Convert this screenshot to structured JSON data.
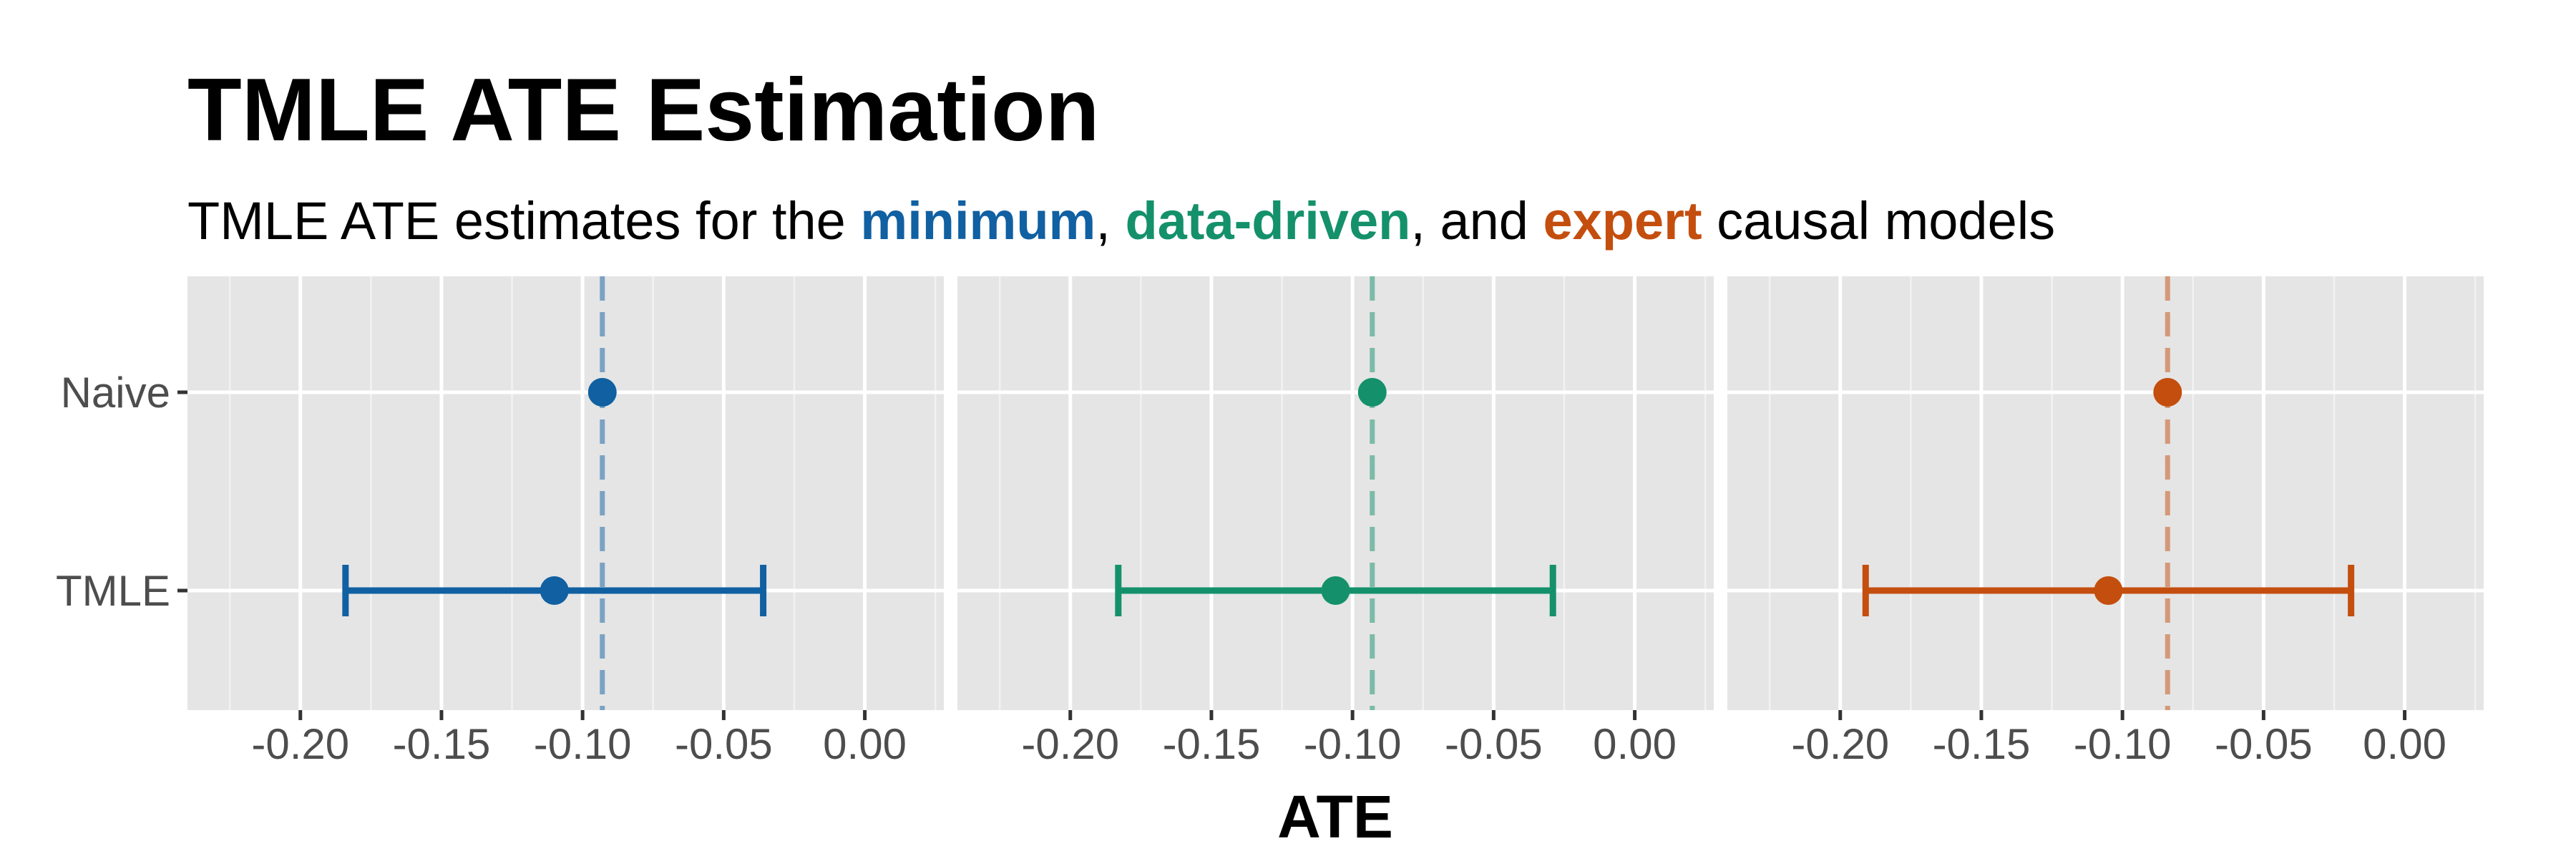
{
  "chart_data": {
    "type": "scatter",
    "title": "TMLE ATE Estimation",
    "subtitle": {
      "prefix": "TMLE ATE estimates for the ",
      "minimum": "minimum",
      "sep1": ", ",
      "data_driven": "data-driven",
      "sep2": ", and ",
      "expert": "expert",
      "suffix": " causal models"
    },
    "xlabel": "ATE",
    "ylabel": "",
    "xlim": [
      -0.24,
      0.028
    ],
    "x_ticks": [
      -0.2,
      -0.15,
      -0.1,
      -0.05,
      0.0
    ],
    "x_tick_labels": [
      "-0.20",
      "-0.15",
      "-0.10",
      "-0.05",
      "0.00"
    ],
    "categories": [
      "Naive",
      "TMLE"
    ],
    "grid": true,
    "panels": [
      {
        "model": "minimum",
        "color": "#1060A2",
        "naive": -0.093,
        "tmle": -0.11,
        "tmle_ci": [
          -0.184,
          -0.036
        ],
        "reference_line": -0.093
      },
      {
        "model": "data-driven",
        "color": "#14916A",
        "naive": -0.093,
        "tmle": -0.106,
        "tmle_ci": [
          -0.183,
          -0.029
        ],
        "reference_line": -0.093
      },
      {
        "model": "expert",
        "color": "#C44E0E",
        "naive": -0.084,
        "tmle": -0.105,
        "tmle_ci": [
          -0.191,
          -0.019
        ],
        "reference_line": -0.084
      }
    ]
  }
}
